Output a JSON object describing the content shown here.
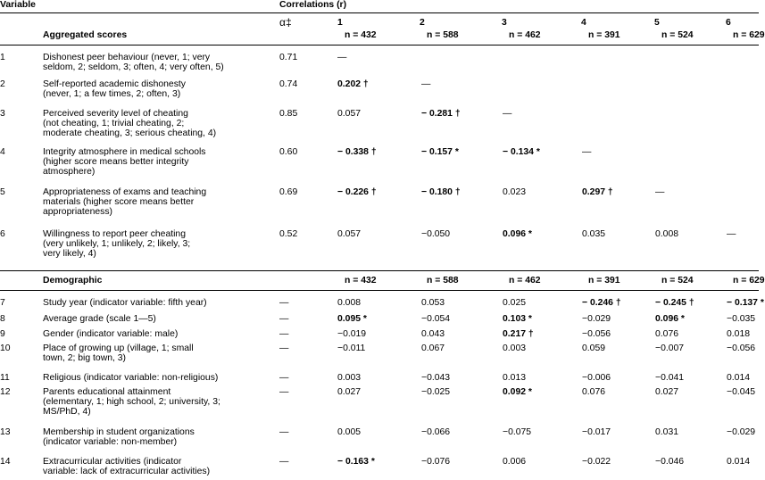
{
  "header": {
    "variable": "Variable",
    "correlations": "Correlations (r)",
    "alpha": "α‡",
    "aggregated": "Aggregated scores",
    "demographic": "Demographic",
    "cols": [
      {
        "num": "1",
        "n": "n = 432"
      },
      {
        "num": "2",
        "n": "n = 588"
      },
      {
        "num": "3",
        "n": "n = 462"
      },
      {
        "num": "4",
        "n": "n = 391"
      },
      {
        "num": "5",
        "n": "n = 524"
      },
      {
        "num": "6",
        "n": "n = 629"
      }
    ]
  },
  "aggregated_rows": [
    {
      "id": "1",
      "lines": [
        "Dishonest peer behaviour (never, 1; very",
        "seldom, 2; seldom, 3; often, 4; very often, 5)"
      ],
      "alpha": "0.71",
      "vals": [
        {
          "t": "—",
          "b": false
        }
      ]
    },
    {
      "id": "2",
      "lines": [
        "Self-reported academic dishonesty",
        "(never, 1; a few times, 2; often, 3)"
      ],
      "alpha": "0.74",
      "vals": [
        {
          "t": "0.202 †",
          "b": true
        },
        {
          "t": "—",
          "b": false
        }
      ]
    },
    {
      "id": "3",
      "lines": [
        "Perceived severity level of cheating",
        "(not cheating, 1; trivial cheating, 2;",
        "moderate cheating, 3; serious cheating, 4)"
      ],
      "alpha": "0.85",
      "vals": [
        {
          "t": "0.057",
          "b": false
        },
        {
          "t": "− 0.281 †",
          "b": true
        },
        {
          "t": "—",
          "b": false
        }
      ]
    },
    {
      "id": "4",
      "lines": [
        "Integrity atmosphere in medical schools",
        "(higher score means better integrity",
        "atmosphere)"
      ],
      "alpha": "0.60",
      "vals": [
        {
          "t": "− 0.338 †",
          "b": true
        },
        {
          "t": "− 0.157 *",
          "b": true
        },
        {
          "t": "− 0.134 *",
          "b": true
        },
        {
          "t": "—",
          "b": false
        }
      ]
    },
    {
      "id": "5",
      "lines": [
        "Appropriateness of exams and teaching",
        "materials (higher score means better",
        "appropriateness)"
      ],
      "alpha": "0.69",
      "vals": [
        {
          "t": "− 0.226 †",
          "b": true
        },
        {
          "t": "− 0.180 †",
          "b": true
        },
        {
          "t": "0.023",
          "b": false
        },
        {
          "t": "0.297 †",
          "b": true
        },
        {
          "t": "—",
          "b": false
        }
      ]
    },
    {
      "id": "6",
      "lines": [
        "Willingness to report peer cheating",
        "(very unlikely, 1; unlikely, 2; likely, 3;",
        "very likely, 4)"
      ],
      "alpha": "0.52",
      "vals": [
        {
          "t": "0.057",
          "b": false
        },
        {
          "t": "−0.050",
          "b": false
        },
        {
          "t": "0.096 *",
          "b": true
        },
        {
          "t": "0.035",
          "b": false
        },
        {
          "t": "0.008",
          "b": false
        },
        {
          "t": "—",
          "b": false
        }
      ]
    }
  ],
  "demographic_rows": [
    {
      "id": "7",
      "lines": [
        "Study year (indicator variable: fifth year)"
      ],
      "alpha": "—",
      "vals": [
        {
          "t": "0.008",
          "b": false
        },
        {
          "t": "0.053",
          "b": false
        },
        {
          "t": "0.025",
          "b": false
        },
        {
          "t": "− 0.246 †",
          "b": true
        },
        {
          "t": "− 0.245 †",
          "b": true
        },
        {
          "t": "− 0.137 *",
          "b": true
        }
      ]
    },
    {
      "id": "8",
      "lines": [
        "Average grade (scale 1—5)"
      ],
      "alpha": "—",
      "vals": [
        {
          "t": "0.095 *",
          "b": true
        },
        {
          "t": "−0.054",
          "b": false
        },
        {
          "t": "0.103 *",
          "b": true
        },
        {
          "t": "−0.029",
          "b": false
        },
        {
          "t": "0.096 *",
          "b": true
        },
        {
          "t": "−0.035",
          "b": false
        }
      ]
    },
    {
      "id": "9",
      "lines": [
        "Gender (indicator variable: male)"
      ],
      "alpha": "—",
      "vals": [
        {
          "t": "−0.019",
          "b": false
        },
        {
          "t": "0.043",
          "b": false
        },
        {
          "t": "0.217 †",
          "b": true
        },
        {
          "t": "−0.056",
          "b": false
        },
        {
          "t": "0.076",
          "b": false
        },
        {
          "t": "0.018",
          "b": false
        }
      ]
    },
    {
      "id": "10",
      "lines": [
        "Place of growing up (village, 1; small",
        "town, 2; big town, 3)"
      ],
      "alpha": "—",
      "vals": [
        {
          "t": "−0.011",
          "b": false
        },
        {
          "t": "0.067",
          "b": false
        },
        {
          "t": "0.003",
          "b": false
        },
        {
          "t": "0.059",
          "b": false
        },
        {
          "t": "−0.007",
          "b": false
        },
        {
          "t": "−0.056",
          "b": false
        }
      ]
    },
    {
      "id": "11",
      "lines": [
        "Religious (indicator variable: non-religious)"
      ],
      "alpha": "—",
      "vals": [
        {
          "t": "0.003",
          "b": false
        },
        {
          "t": "−0.043",
          "b": false
        },
        {
          "t": "0.013",
          "b": false
        },
        {
          "t": "−0.006",
          "b": false
        },
        {
          "t": "−0.041",
          "b": false
        },
        {
          "t": "0.014",
          "b": false
        }
      ]
    },
    {
      "id": "12",
      "lines": [
        "Parents educational attainment",
        "(elementary, 1; high school, 2; university, 3;",
        "MS/PhD, 4)"
      ],
      "alpha": "—",
      "vals": [
        {
          "t": "0.027",
          "b": false
        },
        {
          "t": "−0.025",
          "b": false
        },
        {
          "t": "0.092 *",
          "b": true
        },
        {
          "t": "0.076",
          "b": false
        },
        {
          "t": "0.027",
          "b": false
        },
        {
          "t": "−0.045",
          "b": false
        }
      ]
    },
    {
      "id": "13",
      "lines": [
        "Membership in student organizations",
        "(indicator variable: non-member)"
      ],
      "alpha": "—",
      "vals": [
        {
          "t": "0.005",
          "b": false
        },
        {
          "t": "−0.066",
          "b": false
        },
        {
          "t": "−0.075",
          "b": false
        },
        {
          "t": "−0.017",
          "b": false
        },
        {
          "t": "0.031",
          "b": false
        },
        {
          "t": "−0.029",
          "b": false
        }
      ]
    },
    {
      "id": "14",
      "lines": [
        "Extracurricular activities (indicator",
        "variable: lack of extracurricular activities)"
      ],
      "alpha": "—",
      "vals": [
        {
          "t": "− 0.163 *",
          "b": true
        },
        {
          "t": "−0.076",
          "b": false
        },
        {
          "t": "0.006",
          "b": false
        },
        {
          "t": "−0.022",
          "b": false
        },
        {
          "t": "−0.046",
          "b": false
        },
        {
          "t": "0.014",
          "b": false
        }
      ]
    }
  ]
}
